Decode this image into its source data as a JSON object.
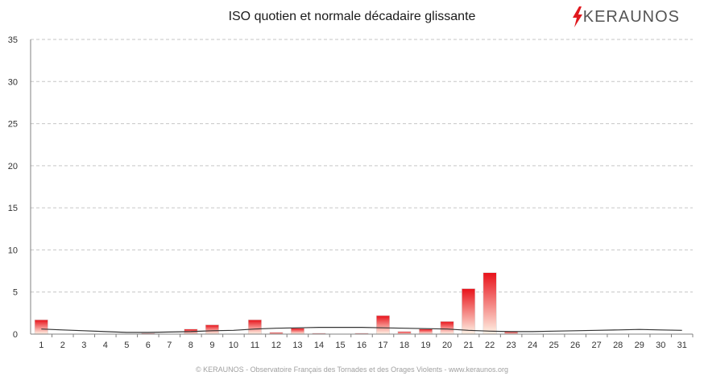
{
  "header": {
    "title": "ISO quotien et normale décadaire glissante",
    "logo_text": "KERAUNOS",
    "logo_color": "#e0181e"
  },
  "footer": {
    "text": "© KERAUNOS - Observatoire Français des Tornades et des Orages Violents - www.keraunos.org"
  },
  "chart_data": {
    "type": "bar",
    "title": "ISO quotien et normale décadaire glissante",
    "xlabel": "",
    "ylabel": "",
    "ylim": [
      0,
      35
    ],
    "yticks": [
      0,
      5,
      10,
      15,
      20,
      25,
      30,
      35
    ],
    "grid": true,
    "categories": [
      "1",
      "2",
      "3",
      "4",
      "5",
      "6",
      "7",
      "8",
      "9",
      "10",
      "11",
      "12",
      "13",
      "14",
      "15",
      "16",
      "17",
      "18",
      "19",
      "20",
      "21",
      "22",
      "23",
      "24",
      "25",
      "26",
      "27",
      "28",
      "29",
      "30",
      "31"
    ],
    "series": [
      {
        "kind": "bar",
        "color_top": "#e8121a",
        "color_bottom": "#fff3e6",
        "values": [
          1.7,
          0,
          0,
          0,
          0,
          0.1,
          0,
          0.6,
          1.1,
          0,
          1.7,
          0.2,
          0.7,
          0.1,
          0,
          0.1,
          2.2,
          0.3,
          0.6,
          1.5,
          5.4,
          7.3,
          0.3,
          0,
          0,
          0,
          0,
          0,
          0,
          0,
          0
        ]
      },
      {
        "kind": "line",
        "color": "#333333",
        "values": [
          0.6,
          0.5,
          0.4,
          0.3,
          0.2,
          0.2,
          0.25,
          0.3,
          0.4,
          0.45,
          0.6,
          0.7,
          0.75,
          0.8,
          0.8,
          0.8,
          0.75,
          0.7,
          0.65,
          0.6,
          0.45,
          0.35,
          0.3,
          0.3,
          0.35,
          0.4,
          0.45,
          0.5,
          0.55,
          0.5,
          0.45
        ]
      }
    ]
  }
}
